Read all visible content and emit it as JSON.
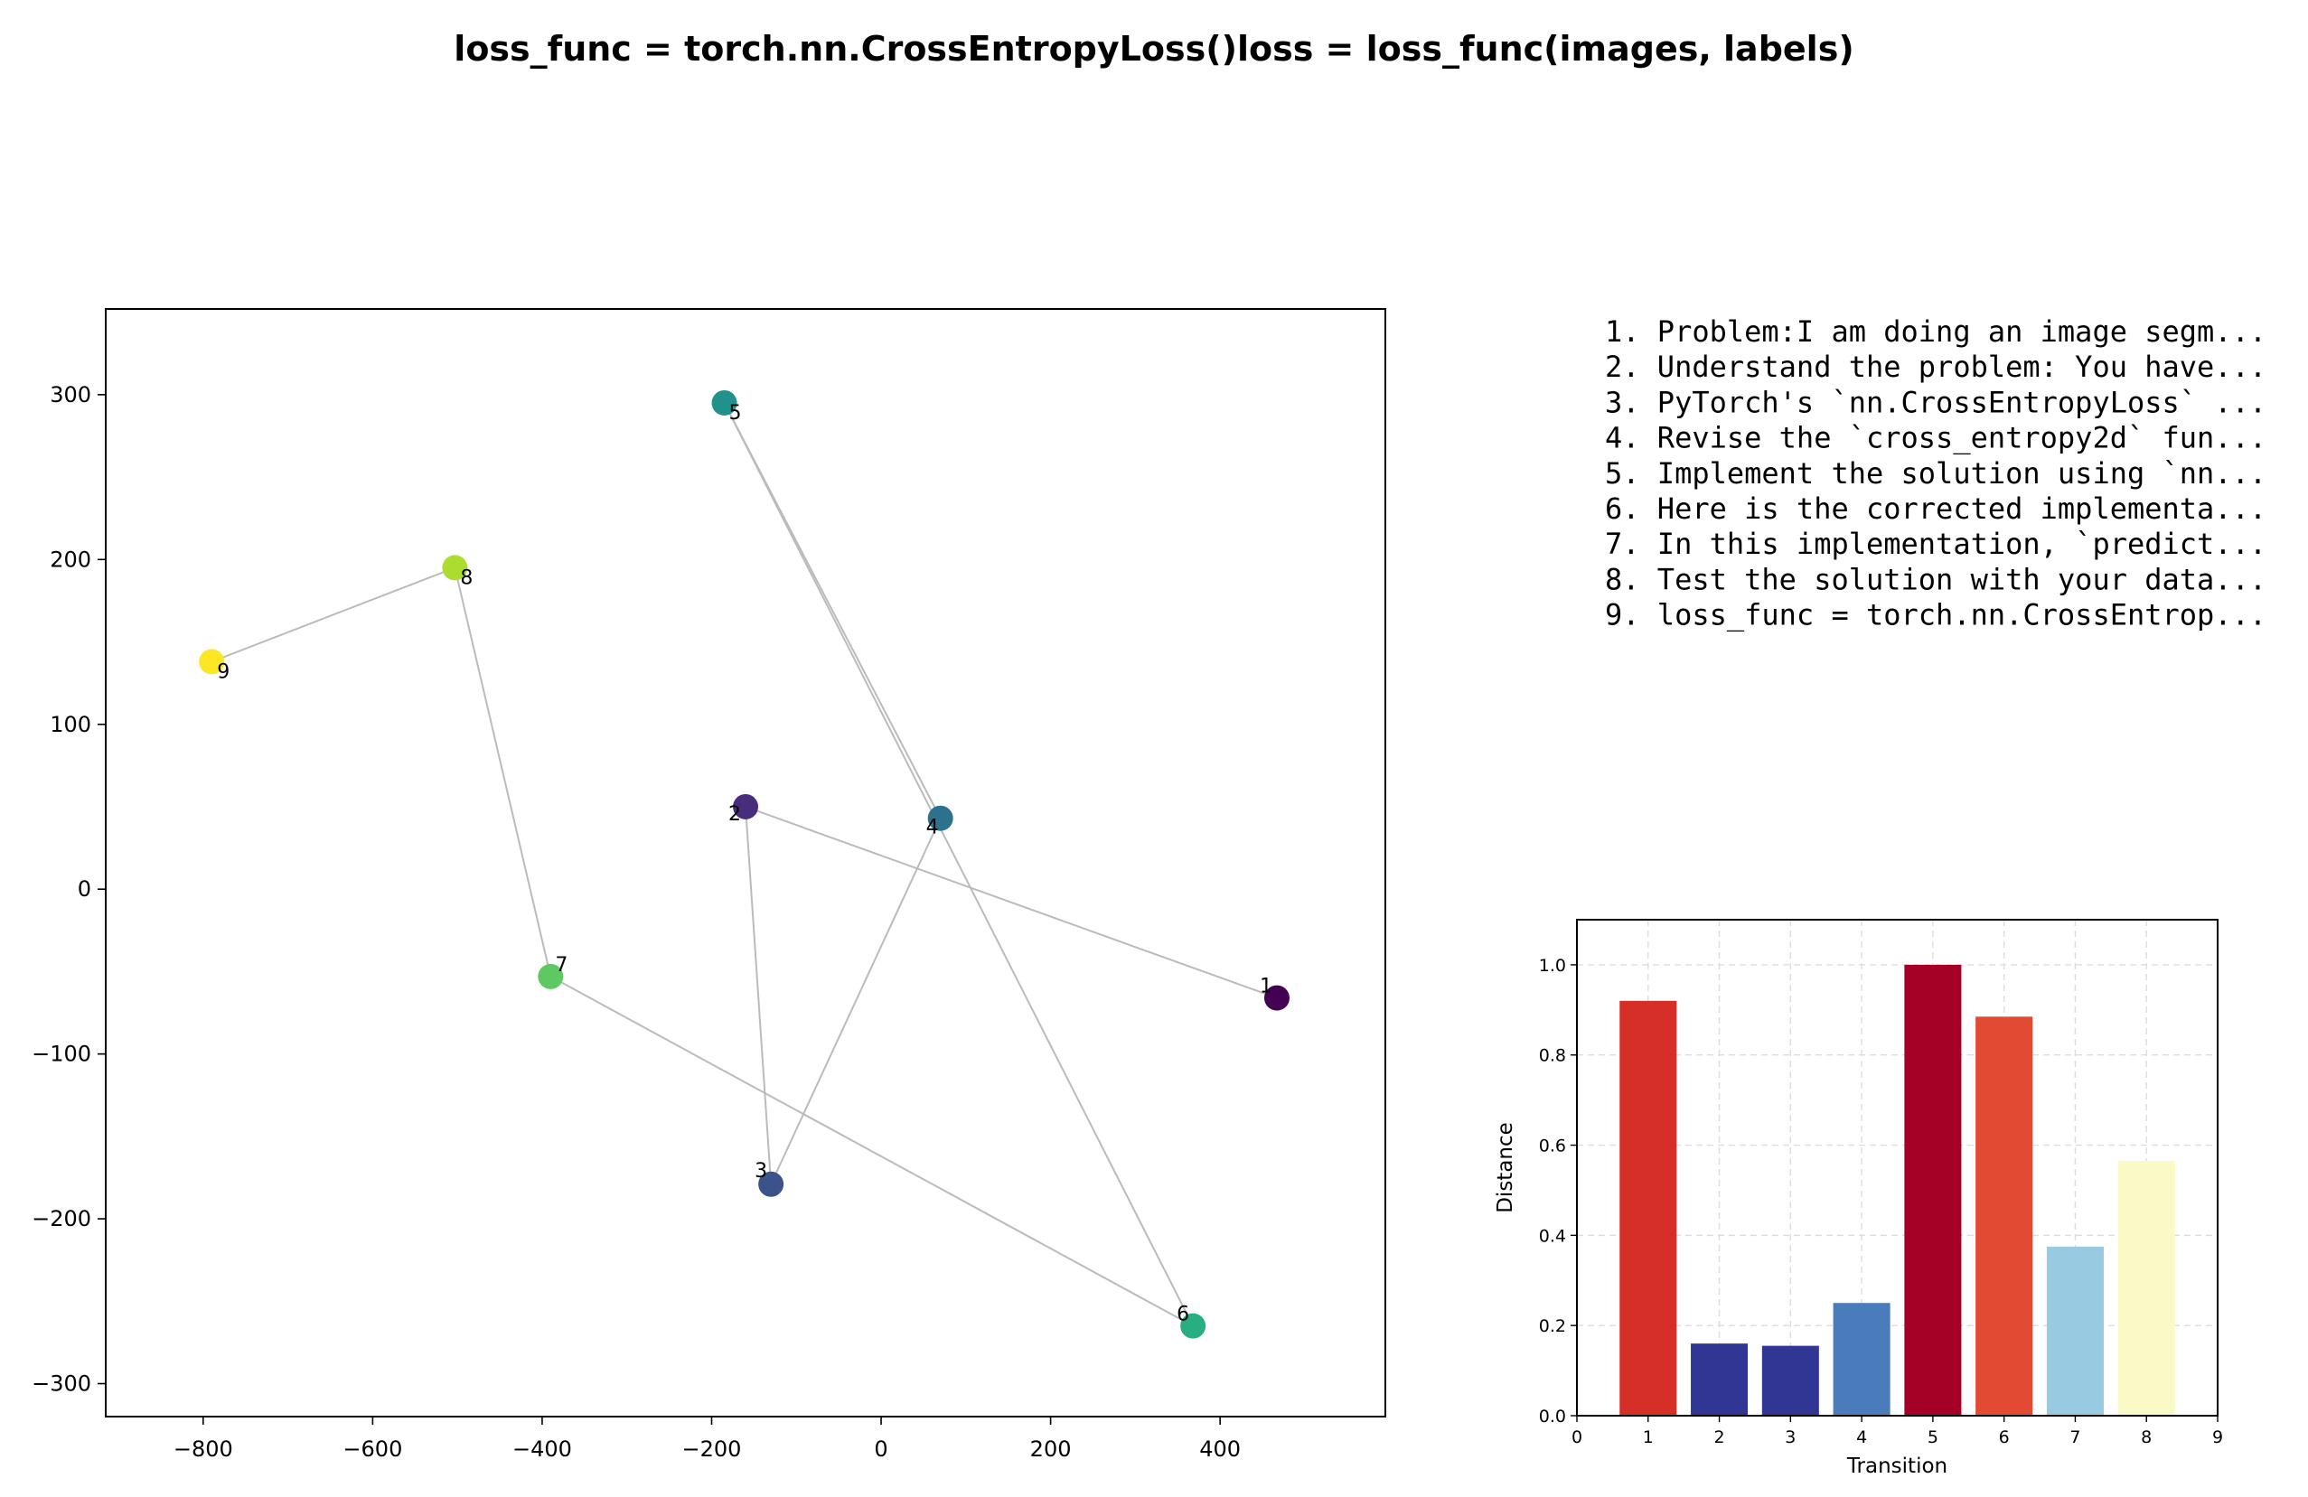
{
  "figure": {
    "title": "loss_func = torch.nn.CrossEntropyLoss()loss = loss_func(images, labels)"
  },
  "steps": [
    "1. Problem:I am doing an image segm...",
    "2. Understand the problem: You have...",
    "3. PyTorch's `nn.CrossEntropyLoss` ...",
    "4. Revise the `cross_entropy2d` fun...",
    "5. Implement the solution using `nn...",
    "6. Here is the corrected implementa...",
    "7. In this implementation, `predict...",
    "8. Test the solution with your data...",
    "9. loss_func = torch.nn.CrossEntrop..."
  ],
  "chart_data": [
    {
      "type": "scatter",
      "title": "",
      "xlabel": "",
      "ylabel": "",
      "xlim": [
        -915,
        595
      ],
      "ylim": [
        -320,
        352
      ],
      "xticks": [
        -800,
        -600,
        -400,
        -200,
        0,
        200,
        400
      ],
      "yticks": [
        -300,
        -200,
        -100,
        0,
        100,
        200,
        300
      ],
      "grid": false,
      "connect_in_order": true,
      "line_color": "#bbbbbb",
      "points": [
        {
          "label": "1",
          "x": 467,
          "y": -66,
          "color": "#440154"
        },
        {
          "label": "2",
          "x": -160,
          "y": 50,
          "color": "#472d7b"
        },
        {
          "label": "3",
          "x": -130,
          "y": -179,
          "color": "#3b528b"
        },
        {
          "label": "4",
          "x": 70,
          "y": 43,
          "color": "#2c728e"
        },
        {
          "label": "5",
          "x": -185,
          "y": 295,
          "color": "#21918c"
        },
        {
          "label": "6",
          "x": 368,
          "y": -265,
          "color": "#28ae80"
        },
        {
          "label": "7",
          "x": -390,
          "y": -53,
          "color": "#5ec962"
        },
        {
          "label": "8",
          "x": -503,
          "y": 195,
          "color": "#addc30"
        },
        {
          "label": "9",
          "x": -790,
          "y": 138,
          "color": "#fde725"
        }
      ]
    },
    {
      "type": "bar",
      "title": "",
      "xlabel": "Transition",
      "ylabel": "Distance",
      "xlim": [
        0,
        9
      ],
      "ylim": [
        0,
        1.1
      ],
      "xticks": [
        0,
        1,
        2,
        3,
        4,
        5,
        6,
        7,
        8,
        9
      ],
      "yticks": [
        "0.0",
        "0.2",
        "0.4",
        "0.6",
        "0.8",
        "1.0"
      ],
      "grid": true,
      "categories": [
        1,
        2,
        3,
        4,
        5,
        6,
        7,
        8
      ],
      "values": [
        0.92,
        0.16,
        0.155,
        0.25,
        1.0,
        0.885,
        0.375,
        0.565
      ],
      "colors": [
        "#d62f27",
        "#313695",
        "#313695",
        "#4a7bbb",
        "#a50026",
        "#e34a33",
        "#98cae1",
        "#fafac7"
      ]
    }
  ]
}
